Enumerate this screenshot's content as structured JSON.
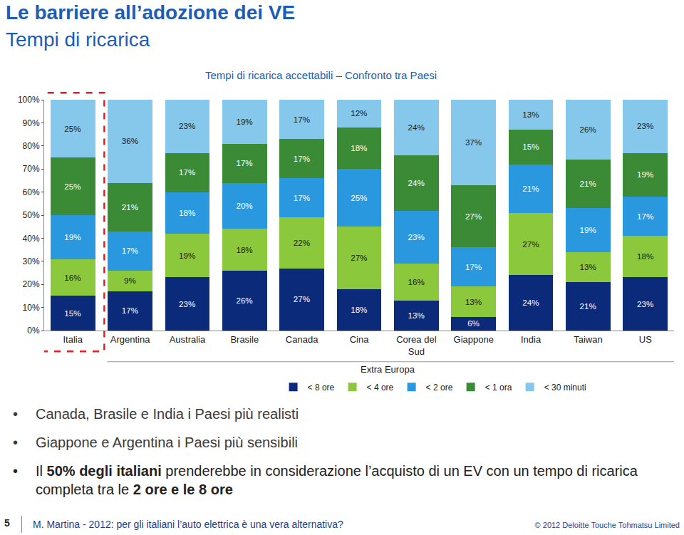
{
  "slide": {
    "title": "Le barriere all’adozione dei VE",
    "subtitle": "Tempi di ricarica",
    "bullets": [
      [
        {
          "text": "Canada, Brasile e India i Paesi più realisti",
          "bold": false
        }
      ],
      [
        {
          "text": "Giappone e Argentina i Paesi più sensibili",
          "bold": false
        }
      ],
      [
        {
          "text": "Il ",
          "bold": false
        },
        {
          "text": "50% degli italiani",
          "bold": true
        },
        {
          "text": " prenderebbe in considerazione l’acquisto di un EV con un tempo di ricarica completa tra le ",
          "bold": false
        },
        {
          "text": "2 ore e le 8 ore",
          "bold": true
        }
      ]
    ],
    "page": "5",
    "footer": "M. Martina - 2012: per gli italiani l’auto elettrica è una vera alternativa?",
    "copyright": "© 2012 Deloitte Touche Tohmatsu Limited"
  },
  "chart_data": {
    "type": "bar",
    "stacked": true,
    "data_labels": true,
    "grid": false,
    "legend": "bottom",
    "title": "Tempi di ricarica accettabili – Confronto tra Paesi",
    "annotations": [
      "Extra Europa"
    ],
    "categories": [
      "Italia",
      "Argentina",
      "Australia",
      "Brasile",
      "Canada",
      "Cina",
      "Corea del Sud",
      "Giappone",
      "India",
      "Taiwan",
      "US"
    ],
    "ylim": [
      0,
      100
    ],
    "yticks": [
      {
        "value": 0,
        "label": "0%"
      },
      {
        "value": 10,
        "label": "10%"
      },
      {
        "value": 20,
        "label": "20%"
      },
      {
        "value": 30,
        "label": "30%"
      },
      {
        "value": 40,
        "label": "40%"
      },
      {
        "value": 50,
        "label": "50%"
      },
      {
        "value": 60,
        "label": "60%"
      },
      {
        "value": 70,
        "label": "70%"
      },
      {
        "value": 80,
        "label": "80%"
      },
      {
        "value": 90,
        "label": "90%"
      },
      {
        "value": 100,
        "label": "100%"
      }
    ],
    "series": [
      {
        "name": "< 8 ore",
        "color": "#0b2a7a",
        "values": [
          15,
          17,
          23,
          26,
          27,
          18,
          13,
          6,
          24,
          21,
          23
        ],
        "value_labels": [
          "15%",
          "17%",
          "23%",
          "26%",
          "27%",
          "18%",
          "13%",
          "6%",
          "24%",
          "21%",
          "23%"
        ]
      },
      {
        "name": "< 4 ore",
        "color": "#8cc83c",
        "values": [
          16,
          9,
          19,
          18,
          22,
          27,
          16,
          13,
          27,
          13,
          18
        ],
        "value_labels": [
          "16%",
          "9%",
          "19%",
          "18%",
          "22%",
          "27%",
          "16%",
          "13%",
          "27%",
          "13%",
          "18%"
        ]
      },
      {
        "name": "< 2 ore",
        "color": "#2a98de",
        "values": [
          19,
          17,
          18,
          20,
          17,
          25,
          23,
          17,
          21,
          19,
          17
        ],
        "value_labels": [
          "19%",
          "17%",
          "18%",
          "20%",
          "17%",
          "25%",
          "23%",
          "17%",
          "21%",
          "19%",
          "17%"
        ]
      },
      {
        "name": "< 1 ora",
        "color": "#3a8a36",
        "values": [
          25,
          21,
          17,
          17,
          17,
          18,
          24,
          27,
          15,
          21,
          19
        ],
        "value_labels": [
          "25%",
          "21%",
          "17%",
          "17%",
          "17%",
          "18%",
          "24%",
          "27%",
          "15%",
          "21%",
          "19%"
        ]
      },
      {
        "name": "< 30 minuti",
        "color": "#86c8ec",
        "values": [
          25,
          36,
          23,
          19,
          17,
          12,
          24,
          37,
          13,
          26,
          23
        ],
        "value_labels": [
          "25%",
          "36%",
          "23%",
          "19%",
          "17%",
          "12%",
          "24%",
          "37%",
          "13%",
          "26%",
          "23%"
        ]
      }
    ]
  }
}
